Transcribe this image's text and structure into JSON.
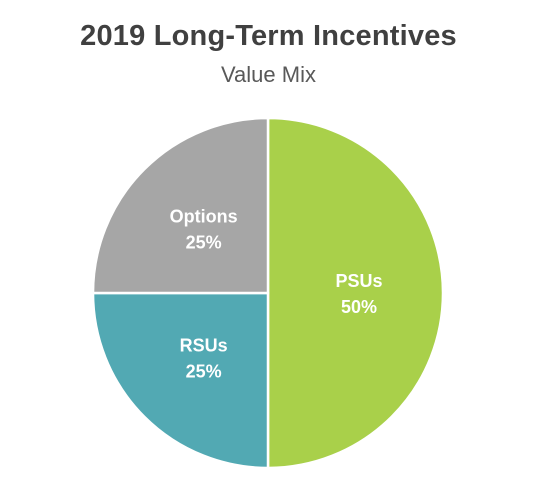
{
  "chart_data": {
    "type": "pie",
    "title": "2019 Long-Term Incentives",
    "subtitle": "Value Mix",
    "slices": [
      {
        "label": "PSUs",
        "value": 50,
        "display": "50%",
        "color": "#A9D04A"
      },
      {
        "label": "RSUs",
        "value": 25,
        "display": "25%",
        "color": "#52A9B3"
      },
      {
        "label": "Options",
        "value": 25,
        "display": "25%",
        "color": "#A6A6A6"
      }
    ],
    "legend": "none",
    "data_labels": "inside"
  }
}
